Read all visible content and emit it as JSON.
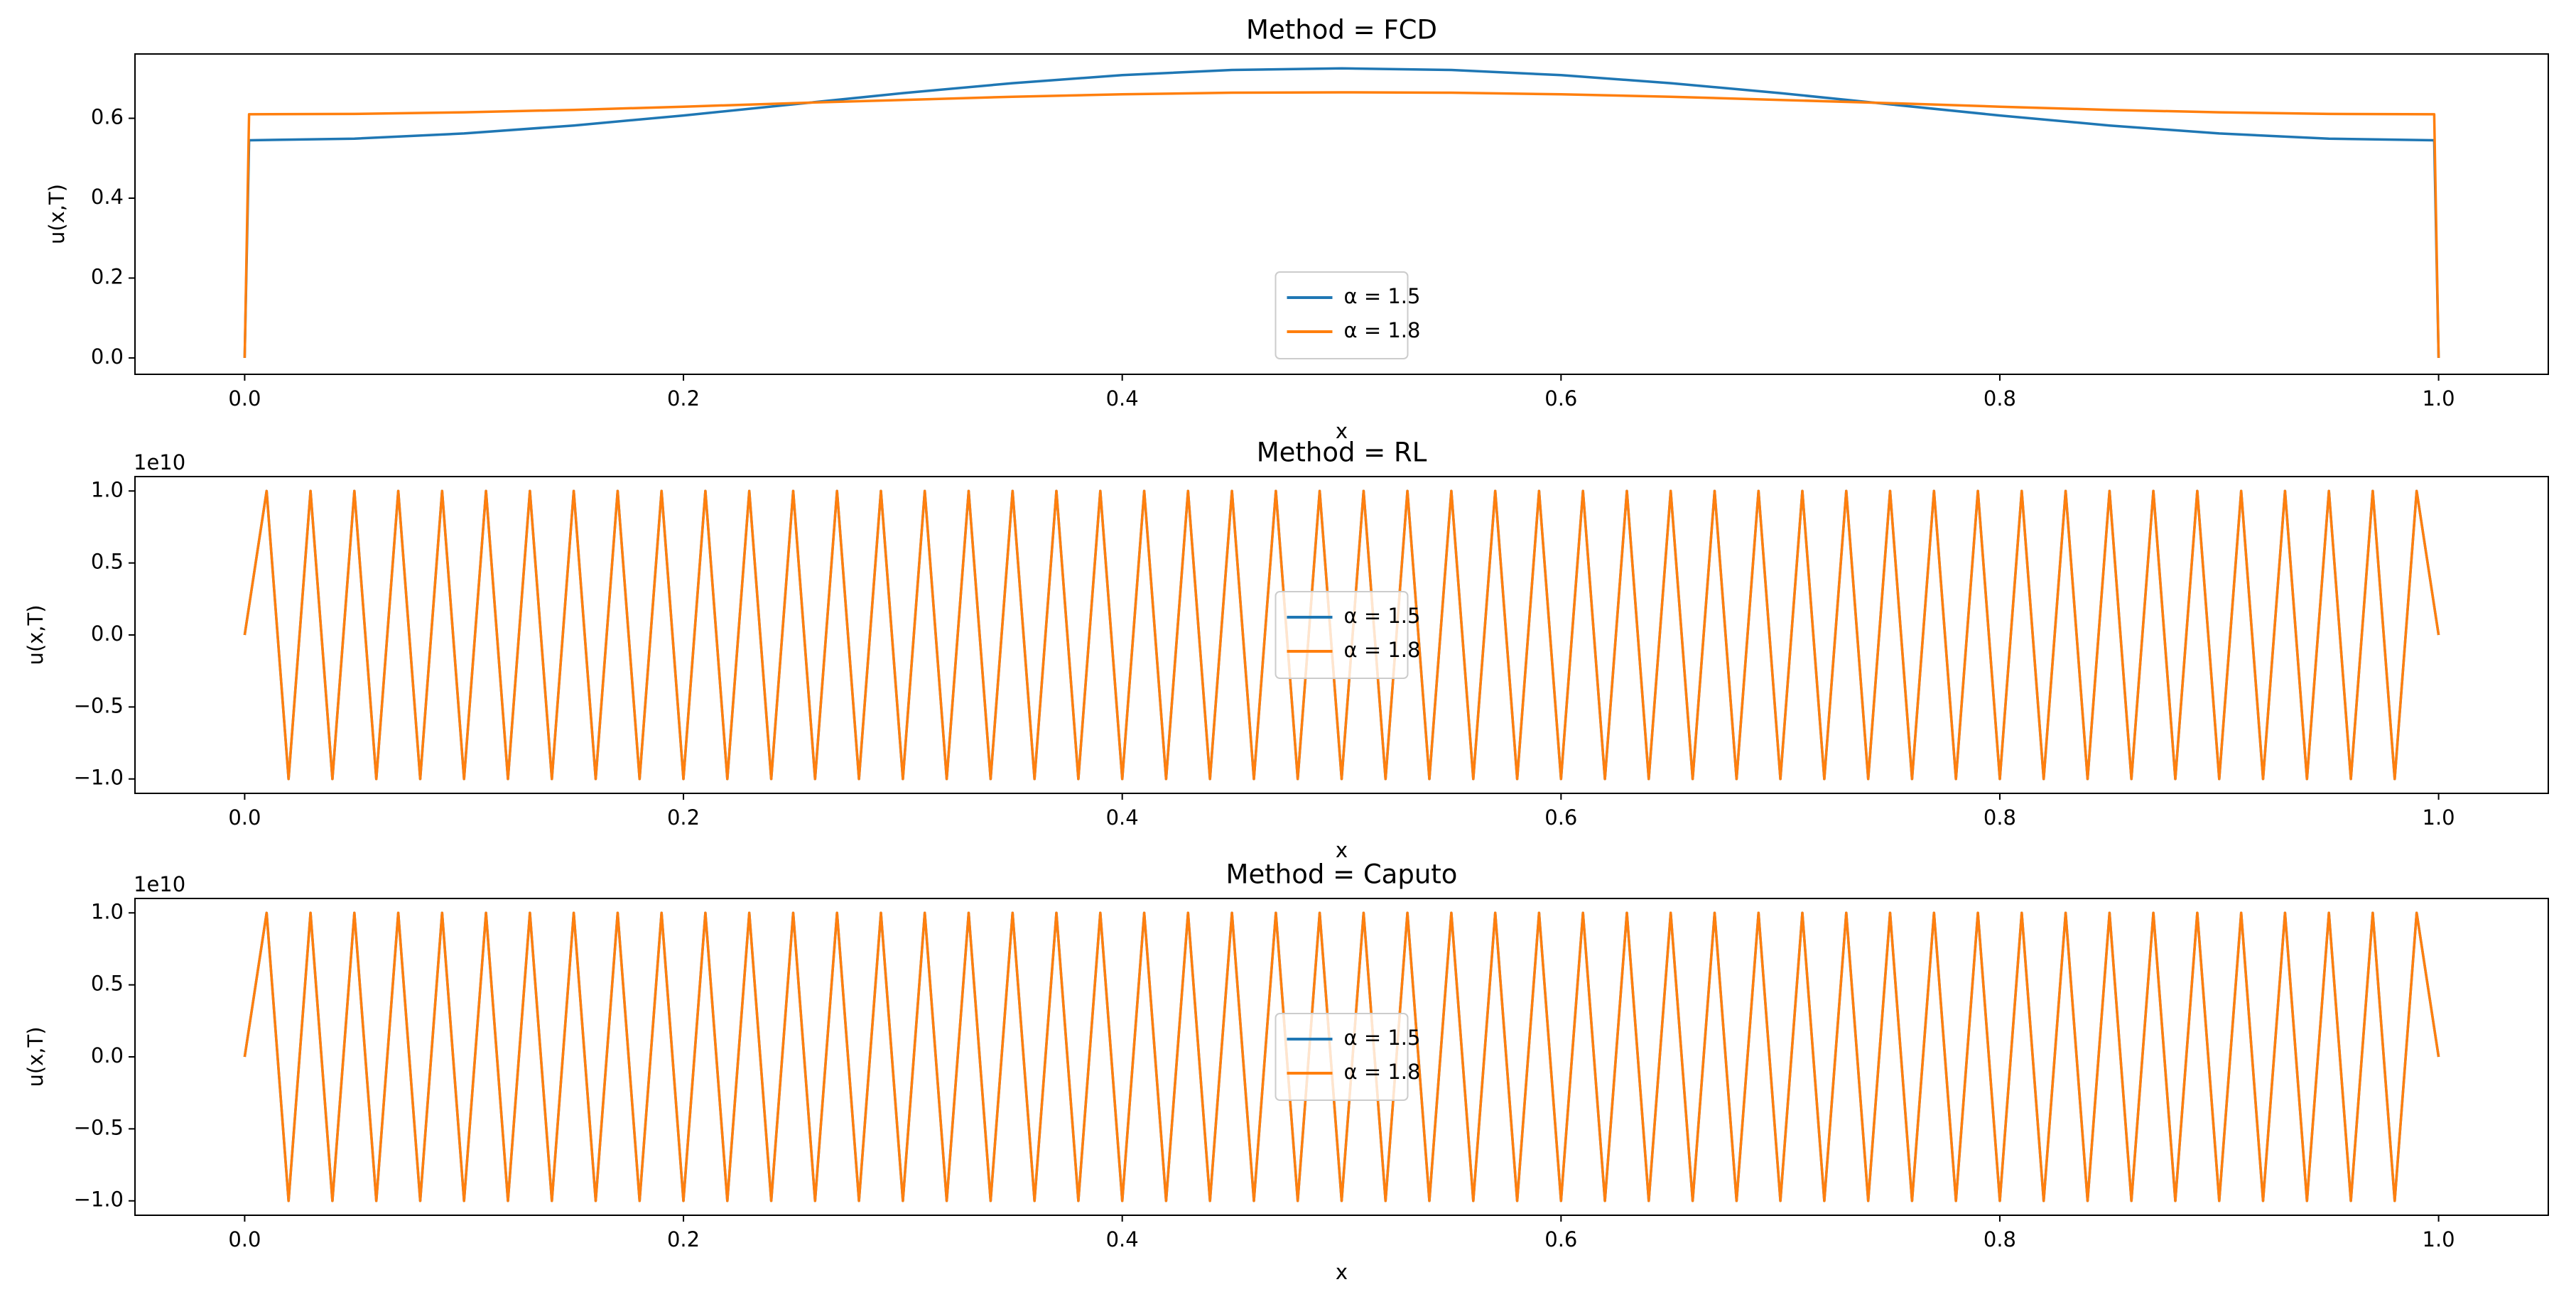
{
  "chart_data": [
    {
      "type": "line",
      "title": "Method = FCD",
      "xlabel": "x",
      "ylabel": "u(x,T)",
      "legend": "lower center",
      "x": [
        0,
        0.002,
        0.05,
        0.1,
        0.15,
        0.2,
        0.25,
        0.3,
        0.35,
        0.4,
        0.45,
        0.5,
        0.55,
        0.6,
        0.65,
        0.7,
        0.75,
        0.8,
        0.85,
        0.9,
        0.95,
        0.998,
        1
      ],
      "series": [
        {
          "name": "α = 1.5",
          "color": "#1f77b4",
          "values": [
            0,
            0.545,
            0.549,
            0.562,
            0.582,
            0.607,
            0.635,
            0.663,
            0.688,
            0.708,
            0.721,
            0.725,
            0.721,
            0.708,
            0.688,
            0.663,
            0.635,
            0.607,
            0.582,
            0.562,
            0.549,
            0.545,
            0
          ]
        },
        {
          "name": "α = 1.8",
          "color": "#ff7f0e",
          "values": [
            0,
            0.61,
            0.611,
            0.615,
            0.621,
            0.629,
            0.638,
            0.646,
            0.654,
            0.66,
            0.664,
            0.665,
            0.664,
            0.66,
            0.654,
            0.646,
            0.638,
            0.629,
            0.621,
            0.615,
            0.611,
            0.61,
            0
          ]
        }
      ],
      "xlim": [
        -0.05,
        1.05
      ],
      "xticks": [
        {
          "value": 0,
          "label": "0.0"
        },
        {
          "value": 0.2,
          "label": "0.2"
        },
        {
          "value": 0.4,
          "label": "0.4"
        },
        {
          "value": 0.6,
          "label": "0.6"
        },
        {
          "value": 0.8,
          "label": "0.8"
        },
        {
          "value": 1,
          "label": "1.0"
        }
      ],
      "ylim": [
        -0.041,
        0.761
      ],
      "yticks": [
        {
          "value": 0,
          "label": "0.0"
        },
        {
          "value": 0.2,
          "label": "0.2"
        },
        {
          "value": 0.4,
          "label": "0.4"
        },
        {
          "value": 0.6,
          "label": "0.6"
        }
      ]
    },
    {
      "type": "line",
      "title": "Method = RL",
      "xlabel": "x",
      "ylabel": "u(x,T)",
      "offset_label": "1e10",
      "legend": "center",
      "x": [
        0,
        0.01,
        0.02,
        0.03,
        0.04,
        0.05,
        0.06,
        0.07,
        0.08,
        0.09,
        0.1,
        0.11,
        0.12,
        0.13,
        0.14,
        0.15,
        0.16,
        0.17,
        0.18,
        0.19,
        0.2,
        0.21,
        0.22,
        0.23,
        0.24,
        0.25,
        0.26,
        0.27,
        0.28,
        0.29,
        0.3,
        0.31,
        0.32,
        0.33,
        0.34,
        0.35,
        0.36,
        0.37,
        0.38,
        0.39,
        0.4,
        0.41,
        0.42,
        0.43,
        0.44,
        0.45,
        0.46,
        0.47,
        0.48,
        0.49,
        0.5,
        0.51,
        0.52,
        0.53,
        0.54,
        0.55,
        0.56,
        0.57,
        0.58,
        0.59,
        0.6,
        0.61,
        0.62,
        0.63,
        0.64,
        0.65,
        0.66,
        0.67,
        0.68,
        0.69,
        0.7,
        0.71,
        0.72,
        0.73,
        0.74,
        0.75,
        0.76,
        0.77,
        0.78,
        0.79,
        0.8,
        0.81,
        0.82,
        0.83,
        0.84,
        0.85,
        0.86,
        0.87,
        0.88,
        0.89,
        0.9,
        0.91,
        0.92,
        0.93,
        0.94,
        0.95,
        0.96,
        0.97,
        0.98,
        0.99,
        1
      ],
      "series": [
        {
          "name": "α = 1.5",
          "color": "#1f77b4",
          "values": [
            0,
            1,
            -1,
            1,
            -1,
            1,
            -1,
            1,
            -1,
            1,
            -1,
            1,
            -1,
            1,
            -1,
            1,
            -1,
            1,
            -1,
            1,
            -1,
            1,
            -1,
            1,
            -1,
            1,
            -1,
            1,
            -1,
            1,
            -1,
            1,
            -1,
            1,
            -1,
            1,
            -1,
            1,
            -1,
            1,
            -1,
            1,
            -1,
            1,
            -1,
            1,
            -1,
            1,
            -1,
            1,
            -1,
            1,
            -1,
            1,
            -1,
            1,
            -1,
            1,
            -1,
            1,
            -1,
            1,
            -1,
            1,
            -1,
            1,
            -1,
            1,
            -1,
            1,
            -1,
            1,
            -1,
            1,
            -1,
            1,
            -1,
            1,
            -1,
            1,
            -1,
            1,
            -1,
            1,
            -1,
            1,
            -1,
            1,
            -1,
            1,
            -1,
            1,
            -1,
            1,
            -1,
            1,
            -1,
            1,
            -1,
            1,
            0
          ]
        },
        {
          "name": "α = 1.8",
          "color": "#ff7f0e",
          "values": [
            0,
            1,
            -1,
            1,
            -1,
            1,
            -1,
            1,
            -1,
            1,
            -1,
            1,
            -1,
            1,
            -1,
            1,
            -1,
            1,
            -1,
            1,
            -1,
            1,
            -1,
            1,
            -1,
            1,
            -1,
            1,
            -1,
            1,
            -1,
            1,
            -1,
            1,
            -1,
            1,
            -1,
            1,
            -1,
            1,
            -1,
            1,
            -1,
            1,
            -1,
            1,
            -1,
            1,
            -1,
            1,
            -1,
            1,
            -1,
            1,
            -1,
            1,
            -1,
            1,
            -1,
            1,
            -1,
            1,
            -1,
            1,
            -1,
            1,
            -1,
            1,
            -1,
            1,
            -1,
            1,
            -1,
            1,
            -1,
            1,
            -1,
            1,
            -1,
            1,
            -1,
            1,
            -1,
            1,
            -1,
            1,
            -1,
            1,
            -1,
            1,
            -1,
            1,
            -1,
            1,
            -1,
            1,
            -1,
            1,
            -1,
            1,
            0
          ]
        }
      ],
      "xlim": [
        -0.05,
        1.05
      ],
      "xticks": [
        {
          "value": 0,
          "label": "0.0"
        },
        {
          "value": 0.2,
          "label": "0.2"
        },
        {
          "value": 0.4,
          "label": "0.4"
        },
        {
          "value": 0.6,
          "label": "0.6"
        },
        {
          "value": 0.8,
          "label": "0.8"
        },
        {
          "value": 1,
          "label": "1.0"
        }
      ],
      "ylim": [
        -1.1,
        1.1
      ],
      "yticks": [
        {
          "value": -1,
          "label": "−1.0"
        },
        {
          "value": -0.5,
          "label": "−0.5"
        },
        {
          "value": 0,
          "label": "0.0"
        },
        {
          "value": 0.5,
          "label": "0.5"
        },
        {
          "value": 1,
          "label": "1.0"
        }
      ]
    },
    {
      "type": "line",
      "title": "Method = Caputo",
      "xlabel": "x",
      "ylabel": "u(x,T)",
      "offset_label": "1e10",
      "legend": "center",
      "x": [
        0,
        0.01,
        0.02,
        0.03,
        0.04,
        0.05,
        0.06,
        0.07,
        0.08,
        0.09,
        0.1,
        0.11,
        0.12,
        0.13,
        0.14,
        0.15,
        0.16,
        0.17,
        0.18,
        0.19,
        0.2,
        0.21,
        0.22,
        0.23,
        0.24,
        0.25,
        0.26,
        0.27,
        0.28,
        0.29,
        0.3,
        0.31,
        0.32,
        0.33,
        0.34,
        0.35,
        0.36,
        0.37,
        0.38,
        0.39,
        0.4,
        0.41,
        0.42,
        0.43,
        0.44,
        0.45,
        0.46,
        0.47,
        0.48,
        0.49,
        0.5,
        0.51,
        0.52,
        0.53,
        0.54,
        0.55,
        0.56,
        0.57,
        0.58,
        0.59,
        0.6,
        0.61,
        0.62,
        0.63,
        0.64,
        0.65,
        0.66,
        0.67,
        0.68,
        0.69,
        0.7,
        0.71,
        0.72,
        0.73,
        0.74,
        0.75,
        0.76,
        0.77,
        0.78,
        0.79,
        0.8,
        0.81,
        0.82,
        0.83,
        0.84,
        0.85,
        0.86,
        0.87,
        0.88,
        0.89,
        0.9,
        0.91,
        0.92,
        0.93,
        0.94,
        0.95,
        0.96,
        0.97,
        0.98,
        0.99,
        1
      ],
      "series": [
        {
          "name": "α = 1.5",
          "color": "#1f77b4",
          "values": [
            0,
            1,
            -1,
            1,
            -1,
            1,
            -1,
            1,
            -1,
            1,
            -1,
            1,
            -1,
            1,
            -1,
            1,
            -1,
            1,
            -1,
            1,
            -1,
            1,
            -1,
            1,
            -1,
            1,
            -1,
            1,
            -1,
            1,
            -1,
            1,
            -1,
            1,
            -1,
            1,
            -1,
            1,
            -1,
            1,
            -1,
            1,
            -1,
            1,
            -1,
            1,
            -1,
            1,
            -1,
            1,
            -1,
            1,
            -1,
            1,
            -1,
            1,
            -1,
            1,
            -1,
            1,
            -1,
            1,
            -1,
            1,
            -1,
            1,
            -1,
            1,
            -1,
            1,
            -1,
            1,
            -1,
            1,
            -1,
            1,
            -1,
            1,
            -1,
            1,
            -1,
            1,
            -1,
            1,
            -1,
            1,
            -1,
            1,
            -1,
            1,
            -1,
            1,
            -1,
            1,
            -1,
            1,
            -1,
            1,
            -1,
            1,
            0
          ]
        },
        {
          "name": "α = 1.8",
          "color": "#ff7f0e",
          "values": [
            0,
            1,
            -1,
            1,
            -1,
            1,
            -1,
            1,
            -1,
            1,
            -1,
            1,
            -1,
            1,
            -1,
            1,
            -1,
            1,
            -1,
            1,
            -1,
            1,
            -1,
            1,
            -1,
            1,
            -1,
            1,
            -1,
            1,
            -1,
            1,
            -1,
            1,
            -1,
            1,
            -1,
            1,
            -1,
            1,
            -1,
            1,
            -1,
            1,
            -1,
            1,
            -1,
            1,
            -1,
            1,
            -1,
            1,
            -1,
            1,
            -1,
            1,
            -1,
            1,
            -1,
            1,
            -1,
            1,
            -1,
            1,
            -1,
            1,
            -1,
            1,
            -1,
            1,
            -1,
            1,
            -1,
            1,
            -1,
            1,
            -1,
            1,
            -1,
            1,
            -1,
            1,
            -1,
            1,
            -1,
            1,
            -1,
            1,
            -1,
            1,
            -1,
            1,
            -1,
            1,
            -1,
            1,
            -1,
            1,
            -1,
            1,
            0
          ]
        }
      ],
      "xlim": [
        -0.05,
        1.05
      ],
      "xticks": [
        {
          "value": 0,
          "label": "0.0"
        },
        {
          "value": 0.2,
          "label": "0.2"
        },
        {
          "value": 0.4,
          "label": "0.4"
        },
        {
          "value": 0.6,
          "label": "0.6"
        },
        {
          "value": 0.8,
          "label": "0.8"
        },
        {
          "value": 1,
          "label": "1.0"
        }
      ],
      "ylim": [
        -1.1,
        1.1
      ],
      "yticks": [
        {
          "value": -1,
          "label": "−1.0"
        },
        {
          "value": -0.5,
          "label": "−0.5"
        },
        {
          "value": 0,
          "label": "0.0"
        },
        {
          "value": 0.5,
          "label": "0.5"
        },
        {
          "value": 1,
          "label": "1.0"
        }
      ]
    }
  ]
}
